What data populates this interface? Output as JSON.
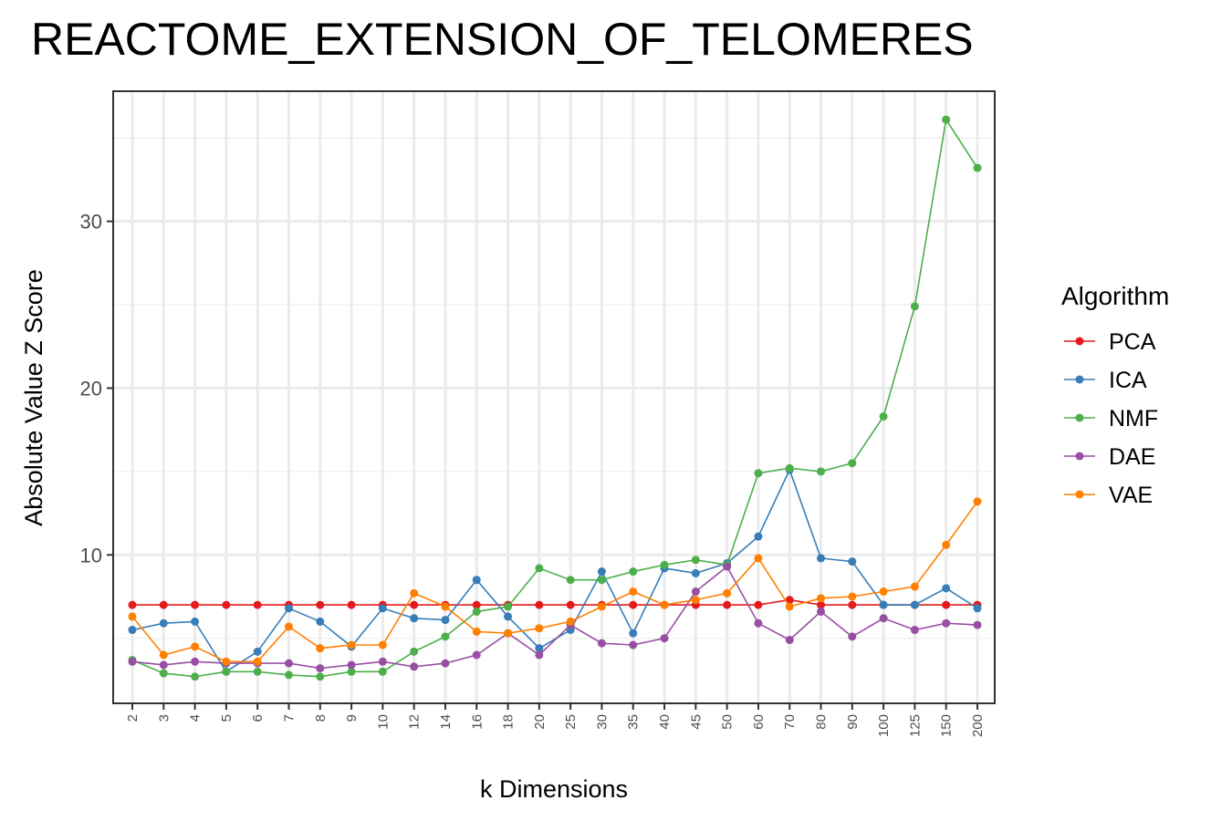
{
  "chart_data": {
    "type": "line",
    "title": "REACTOME_EXTENSION_OF_TELOMERES",
    "xlabel": "k Dimensions",
    "ylabel": "Absolute Value Z Score",
    "categories": [
      "2",
      "3",
      "4",
      "5",
      "6",
      "7",
      "8",
      "9",
      "10",
      "12",
      "14",
      "16",
      "18",
      "20",
      "25",
      "30",
      "35",
      "40",
      "45",
      "50",
      "60",
      "70",
      "80",
      "90",
      "100",
      "125",
      "150",
      "200"
    ],
    "ylim": [
      1.1,
      37.8
    ],
    "yticks": [
      10,
      20,
      30
    ],
    "grid": true,
    "legend": {
      "title": "Algorithm",
      "position": "right"
    },
    "series": [
      {
        "name": "PCA",
        "color": "#E41A1C",
        "values": [
          7.0,
          7.0,
          7.0,
          7.0,
          7.0,
          7.0,
          7.0,
          7.0,
          7.0,
          7.0,
          7.0,
          7.0,
          7.0,
          7.0,
          7.0,
          7.0,
          7.0,
          7.0,
          7.0,
          7.0,
          7.0,
          7.3,
          7.0,
          7.0,
          7.0,
          7.0,
          7.0,
          7.0
        ]
      },
      {
        "name": "ICA",
        "color": "#377EB8",
        "values": [
          5.5,
          5.9,
          6.0,
          3.0,
          4.2,
          6.8,
          6.0,
          4.5,
          6.8,
          6.2,
          6.1,
          8.5,
          6.3,
          4.4,
          5.5,
          9.0,
          5.3,
          9.2,
          8.9,
          9.5,
          11.1,
          15.1,
          9.8,
          9.6,
          7.0,
          7.0,
          8.0,
          6.8
        ]
      },
      {
        "name": "NMF",
        "color": "#4DAF4A",
        "values": [
          3.7,
          2.9,
          2.7,
          3.0,
          3.0,
          2.8,
          2.7,
          3.0,
          3.0,
          4.2,
          5.1,
          6.6,
          6.9,
          9.2,
          8.5,
          8.5,
          9.0,
          9.4,
          9.7,
          9.4,
          14.9,
          15.2,
          15.0,
          15.5,
          18.3,
          24.9,
          36.1,
          33.2
        ]
      },
      {
        "name": "DAE",
        "color": "#984EA3",
        "values": [
          3.6,
          3.4,
          3.6,
          3.5,
          3.5,
          3.5,
          3.2,
          3.4,
          3.6,
          3.3,
          3.5,
          4.0,
          5.3,
          4.0,
          5.8,
          4.7,
          4.6,
          5.0,
          7.8,
          9.3,
          5.9,
          4.9,
          6.6,
          5.1,
          6.2,
          5.5,
          5.9,
          5.8
        ]
      },
      {
        "name": "VAE",
        "color": "#FF7F00",
        "values": [
          6.3,
          4.0,
          4.5,
          3.6,
          3.6,
          5.7,
          4.4,
          4.6,
          4.6,
          7.7,
          6.9,
          5.4,
          5.3,
          5.6,
          6.0,
          6.9,
          7.8,
          7.0,
          7.3,
          7.7,
          9.8,
          6.9,
          7.4,
          7.5,
          7.8,
          8.1,
          10.6,
          13.2
        ]
      }
    ]
  }
}
